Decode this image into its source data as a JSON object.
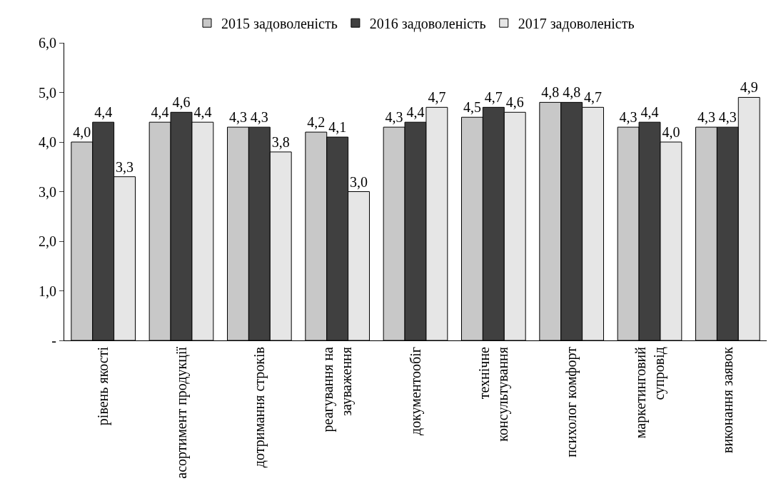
{
  "chart_data": {
    "type": "bar",
    "categories": [
      "рівень якості",
      "асортимент продукції",
      "дотримання строків",
      "реагування на зауваження",
      "документообіг",
      "технічне консультування",
      "психолог комфорт",
      "маркетинговий супровід",
      "виконання заявок"
    ],
    "series": [
      {
        "name": "2015 задоволеність",
        "color": "#c8c8c8",
        "values": [
          4.0,
          4.4,
          4.3,
          4.2,
          4.3,
          4.5,
          4.8,
          4.3,
          4.3
        ],
        "value_labels": [
          "4,0",
          "4,4",
          "4,3",
          "4,2",
          "4,3",
          "4,5",
          "4,8",
          "4,3",
          "4,3"
        ]
      },
      {
        "name": "2016 задоволеність",
        "color": "#404040",
        "values": [
          4.4,
          4.6,
          4.3,
          4.1,
          4.4,
          4.7,
          4.8,
          4.4,
          4.3
        ],
        "value_labels": [
          "4,4",
          "4,6",
          "4,3",
          "4,1",
          "4,4",
          "4,7",
          "4,8",
          "4,4",
          "4,3"
        ]
      },
      {
        "name": "2017 задоволеність",
        "color": "#e6e6e6",
        "values": [
          3.3,
          4.4,
          3.8,
          3.0,
          4.7,
          4.6,
          4.7,
          4.0,
          4.9
        ],
        "value_labels": [
          "3,3",
          "4,4",
          "3,8",
          "3,0",
          "4,7",
          "4,6",
          "4,7",
          "4,0",
          "4,9"
        ]
      }
    ],
    "ylim": [
      0,
      6
    ],
    "yticks": [
      {
        "value": 0,
        "label": "-"
      },
      {
        "value": 1,
        "label": "1,0"
      },
      {
        "value": 2,
        "label": "2,0"
      },
      {
        "value": 3,
        "label": "3,0"
      },
      {
        "value": 4,
        "label": "4,0"
      },
      {
        "value": 5,
        "label": "5,0"
      },
      {
        "value": 6,
        "label": "6,0"
      }
    ],
    "grid": false,
    "legend": "top"
  }
}
